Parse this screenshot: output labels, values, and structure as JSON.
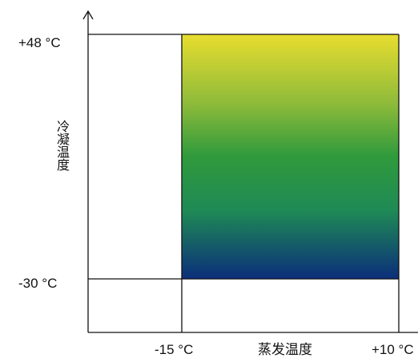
{
  "diagram": {
    "x_axis_label": "蒸发温度",
    "y_axis_label": "冷凝温度",
    "x_ticks": [
      "-15 °C",
      "+10 °C"
    ],
    "y_ticks": [
      "+48 °C",
      "-30 °C"
    ],
    "envelope": {
      "evaporating_min": "-15 °C",
      "evaporating_max": "+10 °C",
      "condensing_min": "-30 °C",
      "condensing_max": "+48 °C"
    },
    "gradient_colors": {
      "top": "#e8dd2f",
      "upper_mid": "#8fbb3a",
      "middle": "#2f9a3c",
      "lower_mid": "#1f8a55",
      "bottom": "#0b2e7a"
    }
  }
}
